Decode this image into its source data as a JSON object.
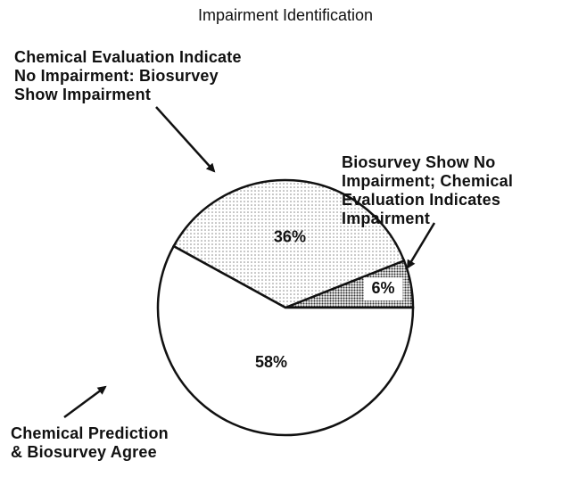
{
  "chart_data": {
    "type": "pie",
    "title": "Impairment Identification",
    "categories": [
      "Biosurvey Show No\nImpairment; Chemical\nEvaluation Indicates\nImpairment",
      "Chemical Evaluation Indicate\nNo Impairment: Biosurvey\nShow Impairment",
      "Chemical Prediction\n& Biosurvey Agree"
    ],
    "values": [
      6,
      36,
      58
    ],
    "value_labels": [
      "6%",
      "36%",
      "58%"
    ],
    "colors": [
      "#333333",
      "#888888",
      "#ffffff"
    ]
  }
}
